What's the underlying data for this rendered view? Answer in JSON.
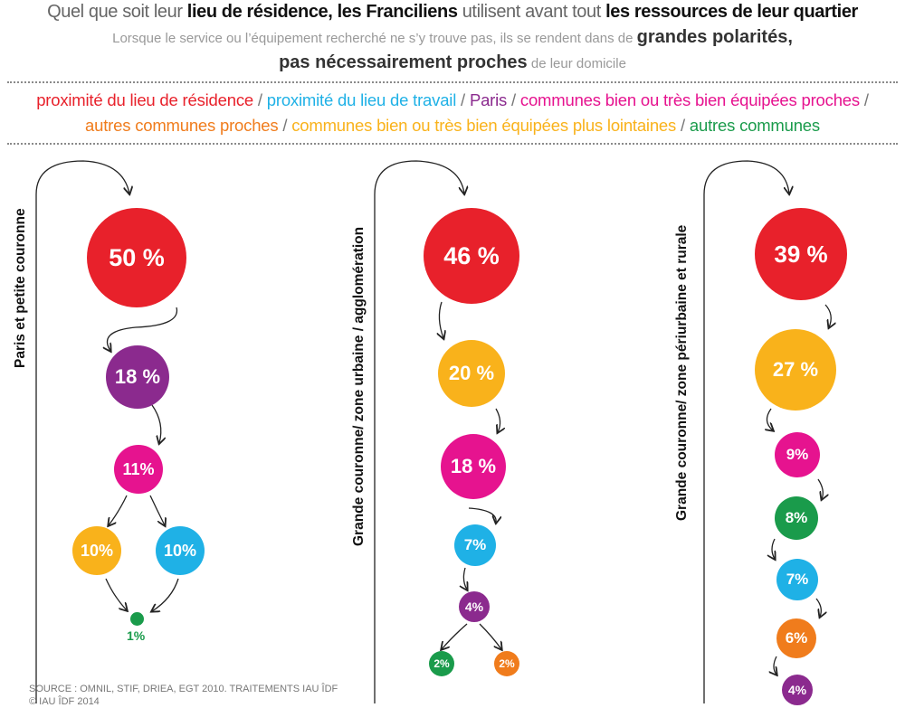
{
  "title": {
    "p1": "Quel que soit leur ",
    "b1": "lieu de résidence, les Franciliens",
    "p2": " utilisent avant tout ",
    "b2": "les ressources de leur quartier"
  },
  "subtitle": {
    "p1": "Lorsque le service ou l’équipement recherché ne s’y trouve pas, ils se rendent dans de ",
    "b1": "grandes polarités,",
    "b2": "pas nécessairement proches",
    "p2": " de leur domicile"
  },
  "legend": {
    "items": [
      {
        "label": "proximité du lieu de résidence",
        "color": "#e8212b"
      },
      {
        "label": "proximité du lieu de travail",
        "color": "#1fb1e6"
      },
      {
        "label": "Paris",
        "color": "#8b2a8e"
      },
      {
        "label": "communes bien ou très bien équipées proches",
        "color": "#e6138f"
      },
      {
        "label": "autres communes proches",
        "color": "#f07c1c"
      },
      {
        "label": "communes bien ou très bien équipées plus lointaines",
        "color": "#f9b21b"
      },
      {
        "label": "autres communes",
        "color": "#1a9b4b"
      }
    ]
  },
  "columns": [
    {
      "label": "Paris et petite couronne",
      "circles": [
        {
          "value": "50 %",
          "color": "#e8212b"
        },
        {
          "value": "18 %",
          "color": "#8b2a8e"
        },
        {
          "value": "11%",
          "color": "#e6138f"
        },
        {
          "value": "10%",
          "color": "#f9b21b"
        },
        {
          "value": "10%",
          "color": "#1fb1e6"
        },
        {
          "value": "1%",
          "color": "#1a9b4b"
        }
      ]
    },
    {
      "label": "Grande couronne/ zone urbaine / agglomération",
      "circles": [
        {
          "value": "46 %",
          "color": "#e8212b"
        },
        {
          "value": "20 %",
          "color": "#f9b21b"
        },
        {
          "value": "18 %",
          "color": "#e6138f"
        },
        {
          "value": "7%",
          "color": "#1fb1e6"
        },
        {
          "value": "4%",
          "color": "#8b2a8e"
        },
        {
          "value": "2%",
          "color": "#1a9b4b"
        },
        {
          "value": "2%",
          "color": "#f07c1c"
        }
      ]
    },
    {
      "label": "Grande couronne/ zone périurbaine et rurale",
      "circles": [
        {
          "value": "39 %",
          "color": "#e8212b"
        },
        {
          "value": "27 %",
          "color": "#f9b21b"
        },
        {
          "value": "9%",
          "color": "#e6138f"
        },
        {
          "value": "8%",
          "color": "#1a9b4b"
        },
        {
          "value": "7%",
          "color": "#1fb1e6"
        },
        {
          "value": "6%",
          "color": "#f07c1c"
        },
        {
          "value": "4%",
          "color": "#8b2a8e"
        }
      ]
    }
  ],
  "source": {
    "line1": "SOURCE : OMNIL, STIF, DRIEA, EGT 2010. TRAITEMENTS IAU ÎDF",
    "line2": "© IAU ÎDF 2014"
  }
}
